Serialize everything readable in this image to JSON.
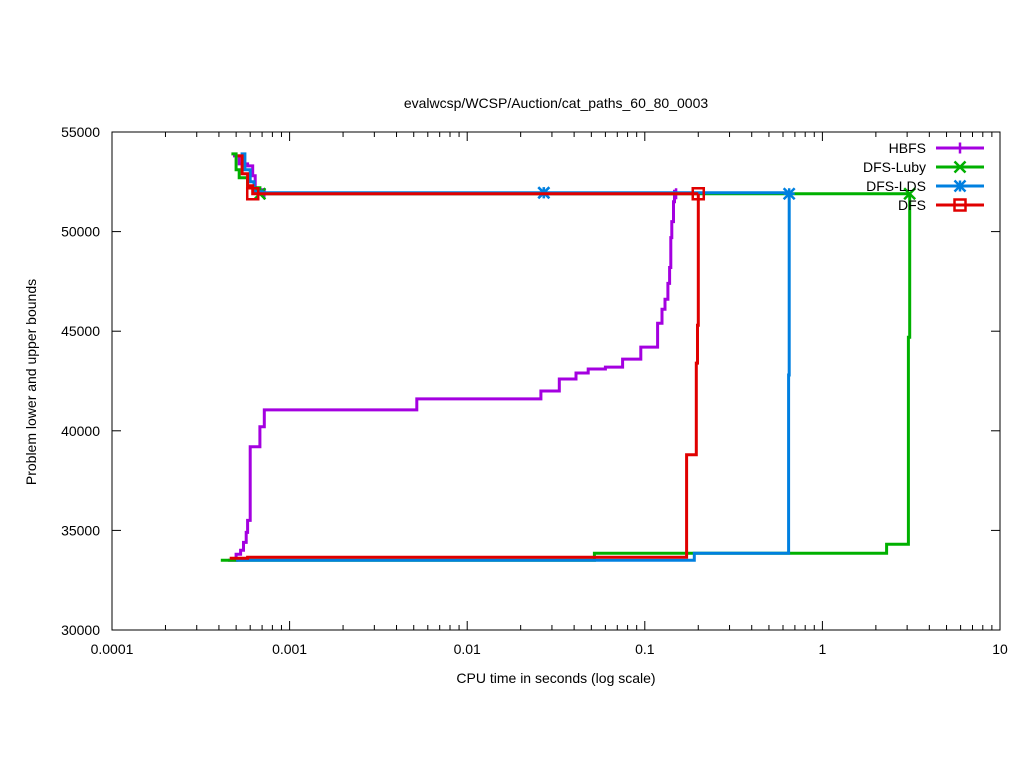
{
  "chart_data": {
    "type": "line",
    "title": "evalwcsp/WCSP/Auction/cat_paths_60_80_0003",
    "xlabel": "CPU time in seconds (log scale)",
    "ylabel": "Problem lower and upper bounds",
    "x_scale": "log",
    "xlim": [
      0.0001,
      10
    ],
    "ylim": [
      30000,
      55000
    ],
    "x_ticks": [
      0.0001,
      0.001,
      0.01,
      0.1,
      1,
      10
    ],
    "x_tick_labels": [
      "0.0001",
      "0.001",
      "0.01",
      "0.1",
      "1",
      "10"
    ],
    "y_ticks": [
      30000,
      35000,
      40000,
      45000,
      50000,
      55000
    ],
    "y_tick_labels": [
      "30000",
      "35000",
      "40000",
      "45000",
      "50000",
      "55000"
    ],
    "grid": false,
    "legend_position": "top-right",
    "series": [
      {
        "name": "HBFS",
        "color": "#a400e0",
        "marker": "plus",
        "upper": [
          [
            0.00048,
            53800
          ],
          [
            0.00052,
            53400
          ],
          [
            0.00058,
            53300
          ],
          [
            0.00062,
            52800
          ],
          [
            0.00064,
            52100
          ],
          [
            0.00072,
            51900
          ],
          [
            0.15,
            51900
          ]
        ],
        "lower": [
          [
            0.00045,
            33500
          ],
          [
            0.0005,
            33800
          ],
          [
            0.00053,
            34000
          ],
          [
            0.00055,
            34400
          ],
          [
            0.00057,
            34900
          ],
          [
            0.00058,
            35500
          ],
          [
            0.0006,
            39200
          ],
          [
            0.00068,
            40200
          ],
          [
            0.00072,
            41050
          ],
          [
            0.0052,
            41600
          ],
          [
            0.026,
            42000
          ],
          [
            0.033,
            42600
          ],
          [
            0.041,
            42900
          ],
          [
            0.048,
            43100
          ],
          [
            0.06,
            43200
          ],
          [
            0.075,
            43600
          ],
          [
            0.09,
            43600
          ],
          [
            0.095,
            44200
          ],
          [
            0.118,
            45400
          ],
          [
            0.125,
            46100
          ],
          [
            0.13,
            46600
          ],
          [
            0.135,
            47400
          ],
          [
            0.138,
            48200
          ],
          [
            0.14,
            49700
          ],
          [
            0.142,
            50500
          ],
          [
            0.145,
            51500
          ],
          [
            0.147,
            52100
          ]
        ]
      },
      {
        "name": "DFS-Luby",
        "color": "#00b000",
        "marker": "x",
        "upper": [
          [
            0.00047,
            53900
          ],
          [
            0.0005,
            53100
          ],
          [
            0.00052,
            52700
          ],
          [
            0.00058,
            52200
          ],
          [
            0.00068,
            51900
          ],
          [
            3.1,
            51900
          ]
        ],
        "lower": [
          [
            0.00041,
            33500
          ],
          [
            0.052,
            33850
          ],
          [
            0.18,
            33850
          ],
          [
            2.3,
            34300
          ],
          [
            3.05,
            44700
          ],
          [
            3.1,
            51900
          ]
        ]
      },
      {
        "name": "DFS-LDS",
        "color": "#0080e0",
        "marker": "star",
        "upper": [
          [
            0.00053,
            53900
          ],
          [
            0.00056,
            53100
          ],
          [
            0.0006,
            52500
          ],
          [
            0.00063,
            52000
          ],
          [
            0.0007,
            51950
          ],
          [
            0.027,
            51950
          ],
          [
            0.65,
            51900
          ]
        ],
        "lower": [
          [
            0.0005,
            33500
          ],
          [
            0.19,
            33500
          ],
          [
            0.19,
            33850
          ],
          [
            0.64,
            33850
          ],
          [
            0.645,
            42800
          ],
          [
            0.65,
            51900
          ]
        ]
      },
      {
        "name": "DFS",
        "color": "#e00000",
        "marker": "square",
        "upper": [
          [
            0.00051,
            53800
          ],
          [
            0.00054,
            52900
          ],
          [
            0.00058,
            52300
          ],
          [
            0.00062,
            51900
          ],
          [
            0.2,
            51900
          ]
        ],
        "lower": [
          [
            0.00046,
            33600
          ],
          [
            0.00058,
            33650
          ],
          [
            0.17,
            33650
          ],
          [
            0.172,
            38800
          ],
          [
            0.195,
            43400
          ],
          [
            0.198,
            45300
          ],
          [
            0.2,
            51900
          ]
        ]
      }
    ]
  }
}
